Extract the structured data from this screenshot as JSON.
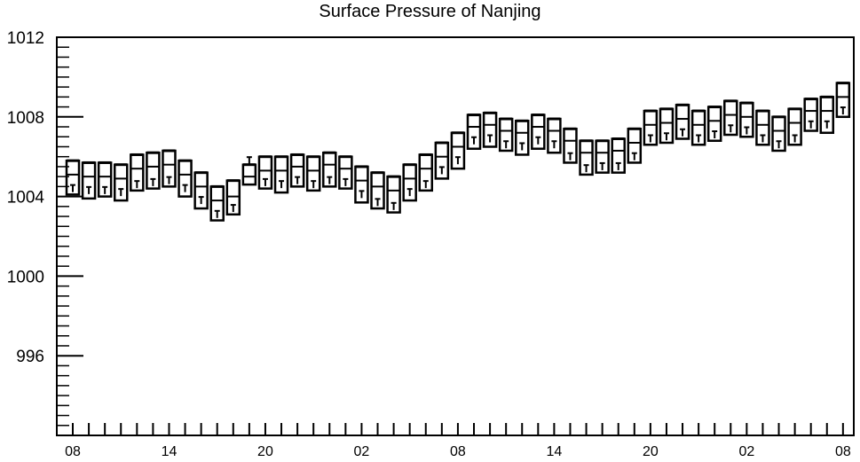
{
  "chart_data": {
    "type": "box",
    "title": "Surface Pressure of Nanjing",
    "xlabel": "",
    "ylabel": "",
    "ylim": [
      992,
      1012
    ],
    "yticks": [
      "1012",
      "1008",
      "1004",
      "1000",
      "996"
    ],
    "ytick_values": [
      1012,
      1008,
      1004,
      1000,
      996
    ],
    "xticks": [
      "08",
      "14",
      "20",
      "02",
      "08",
      "14",
      "20",
      "02",
      "08"
    ],
    "xtick_positions": [
      0,
      6,
      12,
      18,
      24,
      30,
      36,
      42,
      48
    ],
    "series": [
      {
        "boxes": [
          {
            "x": 0,
            "q1": 1004.1,
            "median": 1005.1,
            "q3": 1005.8,
            "mean": 1004.4
          },
          {
            "x": 1,
            "q1": 1003.9,
            "median": 1005.0,
            "q3": 1005.7,
            "mean": 1004.3
          },
          {
            "x": 2,
            "q1": 1004.0,
            "median": 1005.0,
            "q3": 1005.7,
            "mean": 1004.3
          },
          {
            "x": 3,
            "q1": 1003.8,
            "median": 1004.9,
            "q3": 1005.6,
            "mean": 1004.2
          },
          {
            "x": 4,
            "q1": 1004.3,
            "median": 1005.4,
            "q3": 1006.1,
            "mean": 1004.6
          },
          {
            "x": 5,
            "q1": 1004.4,
            "median": 1005.5,
            "q3": 1006.2,
            "mean": 1004.7
          },
          {
            "x": 6,
            "q1": 1004.5,
            "median": 1005.6,
            "q3": 1006.3,
            "mean": 1004.8
          },
          {
            "x": 7,
            "q1": 1004.0,
            "median": 1005.1,
            "q3": 1005.8,
            "mean": 1004.4
          },
          {
            "x": 8,
            "q1": 1003.4,
            "median": 1004.5,
            "q3": 1005.2,
            "mean": 1003.8
          },
          {
            "x": 9,
            "q1": 1002.8,
            "median": 1003.8,
            "q3": 1004.5,
            "mean": 1003.1
          },
          {
            "x": 10,
            "q1": 1003.1,
            "median": 1004.0,
            "q3": 1004.8,
            "mean": 1003.4
          },
          {
            "x": 11,
            "q1": 1004.6,
            "median": 1005.0,
            "q3": 1005.6,
            "mean": 1005.8
          },
          {
            "x": 12,
            "q1": 1004.4,
            "median": 1005.3,
            "q3": 1006.0,
            "mean": 1004.7
          },
          {
            "x": 13,
            "q1": 1004.2,
            "median": 1005.3,
            "q3": 1006.0,
            "mean": 1004.6
          },
          {
            "x": 14,
            "q1": 1004.5,
            "median": 1005.5,
            "q3": 1006.1,
            "mean": 1004.8
          },
          {
            "x": 15,
            "q1": 1004.3,
            "median": 1005.3,
            "q3": 1006.0,
            "mean": 1004.6
          },
          {
            "x": 16,
            "q1": 1004.5,
            "median": 1005.6,
            "q3": 1006.2,
            "mean": 1004.8
          },
          {
            "x": 17,
            "q1": 1004.4,
            "median": 1005.4,
            "q3": 1006.0,
            "mean": 1004.7
          },
          {
            "x": 18,
            "q1": 1003.7,
            "median": 1004.8,
            "q3": 1005.5,
            "mean": 1004.1
          },
          {
            "x": 19,
            "q1": 1003.4,
            "median": 1004.5,
            "q3": 1005.2,
            "mean": 1003.7
          },
          {
            "x": 20,
            "q1": 1003.2,
            "median": 1004.3,
            "q3": 1005.0,
            "mean": 1003.5
          },
          {
            "x": 21,
            "q1": 1003.8,
            "median": 1004.9,
            "q3": 1005.6,
            "mean": 1004.2
          },
          {
            "x": 22,
            "q1": 1004.3,
            "median": 1005.4,
            "q3": 1006.1,
            "mean": 1004.6
          },
          {
            "x": 23,
            "q1": 1004.9,
            "median": 1006.0,
            "q3": 1006.7,
            "mean": 1005.3
          },
          {
            "x": 24,
            "q1": 1005.4,
            "median": 1006.5,
            "q3": 1007.2,
            "mean": 1005.8
          },
          {
            "x": 25,
            "q1": 1006.4,
            "median": 1007.5,
            "q3": 1008.1,
            "mean": 1006.8
          },
          {
            "x": 26,
            "q1": 1006.5,
            "median": 1007.6,
            "q3": 1008.2,
            "mean": 1006.9
          },
          {
            "x": 27,
            "q1": 1006.3,
            "median": 1007.3,
            "q3": 1007.9,
            "mean": 1006.6
          },
          {
            "x": 28,
            "q1": 1006.1,
            "median": 1007.2,
            "q3": 1007.8,
            "mean": 1006.5
          },
          {
            "x": 29,
            "q1": 1006.4,
            "median": 1007.5,
            "q3": 1008.1,
            "mean": 1006.8
          },
          {
            "x": 30,
            "q1": 1006.2,
            "median": 1007.3,
            "q3": 1007.9,
            "mean": 1006.6
          },
          {
            "x": 31,
            "q1": 1005.7,
            "median": 1006.8,
            "q3": 1007.4,
            "mean": 1006.0
          },
          {
            "x": 32,
            "q1": 1005.1,
            "median": 1006.2,
            "q3": 1006.8,
            "mean": 1005.4
          },
          {
            "x": 33,
            "q1": 1005.2,
            "median": 1006.2,
            "q3": 1006.8,
            "mean": 1005.5
          },
          {
            "x": 34,
            "q1": 1005.2,
            "median": 1006.3,
            "q3": 1006.9,
            "mean": 1005.5
          },
          {
            "x": 35,
            "q1": 1005.7,
            "median": 1006.7,
            "q3": 1007.4,
            "mean": 1006.0
          },
          {
            "x": 36,
            "q1": 1006.6,
            "median": 1007.6,
            "q3": 1008.3,
            "mean": 1006.9
          },
          {
            "x": 37,
            "q1": 1006.7,
            "median": 1007.7,
            "q3": 1008.4,
            "mean": 1007.0
          },
          {
            "x": 38,
            "q1": 1006.9,
            "median": 1007.9,
            "q3": 1008.6,
            "mean": 1007.2
          },
          {
            "x": 39,
            "q1": 1006.6,
            "median": 1007.6,
            "q3": 1008.3,
            "mean": 1006.9
          },
          {
            "x": 40,
            "q1": 1006.8,
            "median": 1007.8,
            "q3": 1008.5,
            "mean": 1007.1
          },
          {
            "x": 41,
            "q1": 1007.1,
            "median": 1008.1,
            "q3": 1008.8,
            "mean": 1007.4
          },
          {
            "x": 42,
            "q1": 1007.0,
            "median": 1008.0,
            "q3": 1008.7,
            "mean": 1007.3
          },
          {
            "x": 43,
            "q1": 1006.6,
            "median": 1007.6,
            "q3": 1008.3,
            "mean": 1006.9
          },
          {
            "x": 44,
            "q1": 1006.3,
            "median": 1007.3,
            "q3": 1008.0,
            "mean": 1006.6
          },
          {
            "x": 45,
            "q1": 1006.6,
            "median": 1007.7,
            "q3": 1008.4,
            "mean": 1006.9
          },
          {
            "x": 46,
            "q1": 1007.3,
            "median": 1008.3,
            "q3": 1008.9,
            "mean": 1007.6
          },
          {
            "x": 47,
            "q1": 1007.2,
            "median": 1008.3,
            "q3": 1009.0,
            "mean": 1007.6
          },
          {
            "x": 48,
            "q1": 1008.0,
            "median": 1009.0,
            "q3": 1009.7,
            "mean": 1008.3
          }
        ]
      }
    ],
    "grid": false,
    "legend": "none",
    "colors": {
      "stroke": "#000000",
      "background": "#ffffff"
    }
  }
}
